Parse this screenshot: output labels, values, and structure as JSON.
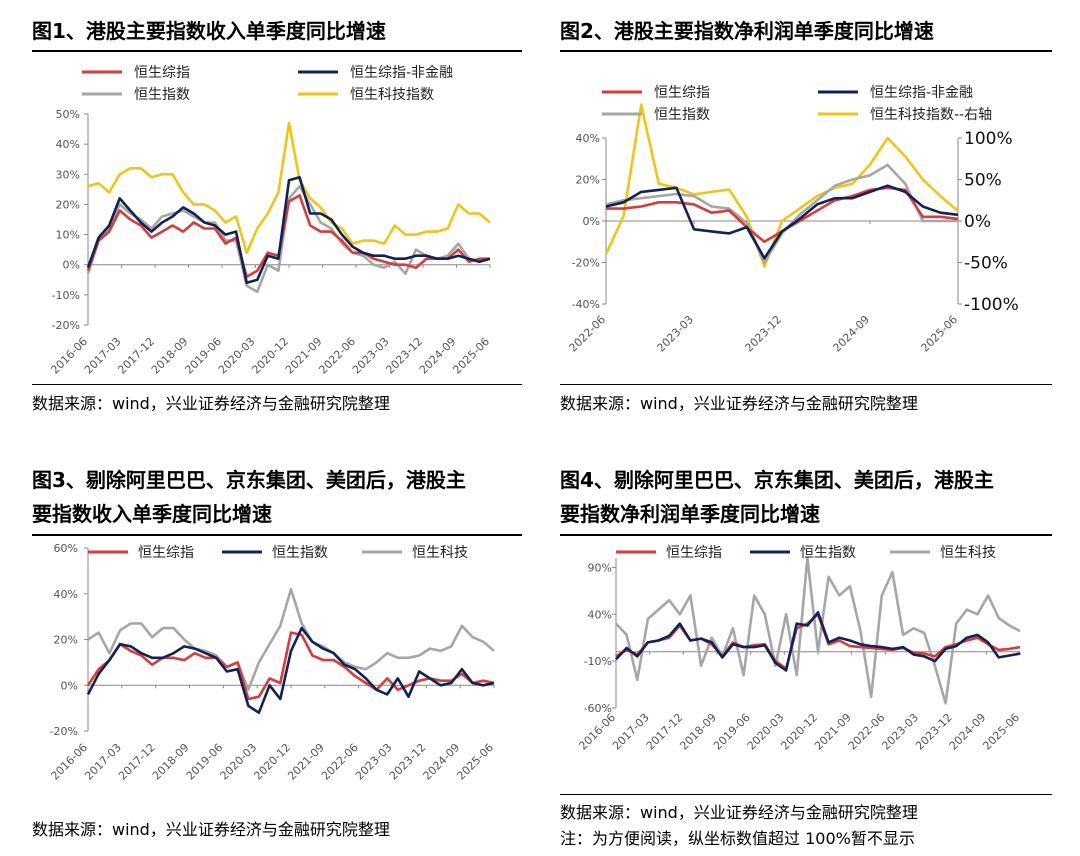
{
  "figures": [
    {
      "id": "fig1",
      "title_lines": [
        "图1、港股主要指数收入单季度同比增速"
      ],
      "source": "数据来源：wind，兴业证券经济与金融研究院整理",
      "note": "",
      "legend": [
        "恒生综指",
        "恒生综指-非金融",
        "恒生指数",
        "恒生科技指数"
      ]
    },
    {
      "id": "fig2",
      "title_lines": [
        "图2、港股主要指数净利润单季度同比增速"
      ],
      "source": "数据来源：wind，兴业证券经济与金融研究院整理",
      "note": "",
      "legend": [
        "恒生综指",
        "恒生综指-非金融",
        "恒生指数",
        "恒生科技指数--右轴"
      ]
    },
    {
      "id": "fig3",
      "title_lines": [
        "图3、剔除阿里巴巴、京东集团、美团后，港股主",
        "要指数收入单季度同比增速"
      ],
      "source": "数据来源：wind，兴业证券经济与金融研究院整理",
      "note": "",
      "legend": [
        "恒生综指",
        "恒生指数",
        "恒生科技"
      ]
    },
    {
      "id": "fig4",
      "title_lines": [
        "图4、剔除阿里巴巴、京东集团、美团后，港股主",
        "要指数净利润单季度同比增速"
      ],
      "source": "数据来源：wind，兴业证券经济与金融研究院整理",
      "note": "注：为方便阅读，纵坐标数值超过 100%暂不显示",
      "legend": [
        "恒生综指",
        "恒生指数",
        "恒生科技"
      ]
    }
  ],
  "colors": {
    "red": "#D93A3A",
    "navy": "#0E2357",
    "gray": "#A6A6A6",
    "yellow": "#F2C511"
  },
  "chart_data": [
    {
      "type": "line",
      "title": "图1、港股主要指数收入单季度同比增速",
      "ylim": [
        -20,
        50
      ],
      "yticks": [
        -20,
        -10,
        0,
        10,
        20,
        30,
        40,
        50
      ],
      "ysuffix": "%",
      "xtick_labels": [
        "2016-06",
        "2017-03",
        "2017-12",
        "2018-09",
        "2019-06",
        "2020-03",
        "2020-12",
        "2021-09",
        "2022-06",
        "2023-03",
        "2023-12",
        "2024-09",
        "2025-06"
      ],
      "series": [
        {
          "name": "恒生综指",
          "color_key": "red",
          "values": [
            -2,
            8,
            11,
            18,
            15,
            13,
            9,
            11,
            13,
            11,
            14,
            12,
            12,
            7,
            9,
            -4,
            -2,
            4,
            3,
            21,
            23,
            13,
            11,
            11,
            8,
            4,
            4,
            2,
            1,
            0,
            0,
            -1,
            2,
            2,
            2,
            5,
            1,
            2,
            2
          ]
        },
        {
          "name": "恒生综指-非金融",
          "color_key": "navy",
          "values": [
            -1,
            9,
            13,
            22,
            18,
            14,
            11,
            14,
            16,
            19,
            17,
            14,
            13,
            10,
            11,
            -6,
            -5,
            3,
            2,
            28,
            29,
            17,
            17,
            15,
            10,
            6,
            4,
            3,
            3,
            2,
            2,
            3,
            3,
            2,
            2,
            3,
            2,
            1,
            2
          ]
        },
        {
          "name": "恒生指数",
          "color_key": "gray",
          "values": [
            -3,
            8,
            12,
            20,
            17,
            15,
            12,
            16,
            17,
            18,
            16,
            14,
            14,
            8,
            8,
            -7,
            -9,
            0,
            -2,
            22,
            26,
            20,
            14,
            12,
            7,
            4,
            3,
            0,
            -1,
            1,
            -3,
            5,
            3,
            2,
            3,
            7,
            2,
            1,
            2
          ]
        },
        {
          "name": "恒生科技指数",
          "color_key": "yellow",
          "values": [
            26,
            27,
            24,
            30,
            32,
            32,
            29,
            30,
            30,
            24,
            20,
            20,
            18,
            14,
            16,
            4,
            12,
            17,
            24,
            47,
            28,
            22,
            19,
            14,
            12,
            7,
            8,
            8,
            7,
            13,
            10,
            10,
            11,
            11,
            12,
            20,
            17,
            17,
            14
          ]
        }
      ]
    },
    {
      "type": "line",
      "title": "图2、港股主要指数净利润单季度同比增速",
      "ylim": [
        -40,
        40
      ],
      "yticks": [
        -40,
        -20,
        0,
        20,
        40
      ],
      "ysuffix": "%",
      "y2lim": [
        -100,
        100
      ],
      "y2ticks": [
        100,
        50,
        0,
        -50,
        -100
      ],
      "y2labels": [
        "100%",
        "50%",
        "0%",
        "-50%",
        "-100%"
      ],
      "xtick_labels": [
        "2022-06",
        "2023-03",
        "2023-12",
        "2024-09",
        "2025-06"
      ],
      "series": [
        {
          "name": "恒生综指",
          "axis": "left",
          "color_key": "red",
          "values": [
            6,
            6,
            7,
            9,
            9,
            8,
            4,
            5,
            -3,
            -10,
            -5,
            0,
            5,
            10,
            12,
            15,
            16,
            15,
            2,
            2,
            1
          ]
        },
        {
          "name": "恒生综指-非金融",
          "axis": "left",
          "color_key": "navy",
          "values": [
            7,
            9,
            14,
            15,
            16,
            -4,
            -5,
            -6,
            -3,
            -18,
            -5,
            1,
            8,
            11,
            11,
            14,
            17,
            14,
            7,
            4,
            3
          ]
        },
        {
          "name": "恒生指数",
          "axis": "left",
          "color_key": "gray",
          "values": [
            8,
            10,
            11,
            12,
            13,
            12,
            7,
            6,
            -1,
            -20,
            -6,
            3,
            10,
            17,
            20,
            22,
            27,
            18,
            0,
            0,
            0
          ]
        },
        {
          "name": "恒生科技指数--右轴",
          "axis": "right",
          "color_key": "yellow",
          "values": [
            -40,
            6,
            140,
            45,
            40,
            32,
            35,
            38,
            5,
            -55,
            0,
            15,
            30,
            40,
            45,
            68,
            100,
            78,
            50,
            30,
            12
          ]
        }
      ]
    },
    {
      "type": "line",
      "title": "图3、剔除阿里巴巴、京东集团、美团后，港股主要指数收入单季度同比增速",
      "ylim": [
        -20,
        60
      ],
      "yticks": [
        -20,
        0,
        20,
        40,
        60
      ],
      "ysuffix": "%",
      "xtick_labels": [
        "2016-06",
        "2017-03",
        "2017-12",
        "2018-09",
        "2019-06",
        "2020-03",
        "2020-12",
        "2021-09",
        "2022-06",
        "2023-03",
        "2023-12",
        "2024-09",
        "2025-06"
      ],
      "series": [
        {
          "name": "恒生综指",
          "color_key": "red",
          "values": [
            0,
            7,
            11,
            18,
            15,
            13,
            9,
            12,
            12,
            11,
            14,
            12,
            12,
            8,
            10,
            -6,
            -5,
            3,
            1,
            23,
            22,
            13,
            11,
            11,
            8,
            4,
            1,
            -2,
            3,
            -2,
            0,
            2,
            3,
            2,
            2,
            5,
            1,
            2,
            1
          ]
        },
        {
          "name": "恒生指数",
          "color_key": "navy",
          "values": [
            -4,
            5,
            11,
            18,
            17,
            14,
            12,
            12,
            14,
            17,
            16,
            14,
            12,
            6,
            7,
            -9,
            -12,
            0,
            -6,
            15,
            25,
            19,
            16,
            14,
            9,
            7,
            3,
            -2,
            -4,
            3,
            -5,
            6,
            3,
            0,
            1,
            7,
            1,
            0,
            1
          ]
        },
        {
          "name": "恒生科技",
          "color_key": "gray",
          "values": [
            20,
            23,
            14,
            24,
            27,
            27,
            21,
            25,
            25,
            20,
            16,
            15,
            13,
            8,
            10,
            -2,
            10,
            18,
            26,
            42,
            27,
            19,
            17,
            14,
            10,
            8,
            7,
            10,
            14,
            12,
            12,
            13,
            16,
            15,
            17,
            26,
            21,
            19,
            15
          ]
        }
      ]
    },
    {
      "type": "line",
      "title": "图4、剔除阿里巴巴、京东集团、美团后，港股主要指数净利润单季度同比增速",
      "ylim": [
        -60,
        100
      ],
      "yticks": [
        -60,
        -10,
        40,
        90
      ],
      "ysuffix": "%",
      "xtick_labels": [
        "2016-06",
        "2017-03",
        "2017-12",
        "2018-09",
        "2019-06",
        "2020-03",
        "2020-12",
        "2021-09",
        "2022-06",
        "2023-03",
        "2023-12",
        "2024-09",
        "2025-06"
      ],
      "series": [
        {
          "name": "恒生综指",
          "color_key": "red",
          "values": [
            -5,
            2,
            -3,
            10,
            12,
            15,
            28,
            12,
            14,
            8,
            -5,
            10,
            5,
            7,
            8,
            -10,
            -18,
            25,
            30,
            40,
            8,
            12,
            6,
            5,
            4,
            3,
            2,
            4,
            -1,
            -2,
            -5,
            5,
            8,
            12,
            15,
            8,
            2,
            3,
            5
          ]
        },
        {
          "name": "恒生指数",
          "color_key": "navy",
          "values": [
            -8,
            4,
            -5,
            10,
            12,
            17,
            30,
            12,
            14,
            10,
            -6,
            8,
            5,
            5,
            7,
            -12,
            -20,
            30,
            28,
            42,
            10,
            15,
            12,
            8,
            6,
            5,
            3,
            5,
            -3,
            -5,
            -10,
            3,
            6,
            15,
            18,
            10,
            -6,
            -4,
            -2
          ]
        },
        {
          "name": "恒生科技",
          "color_key": "gray",
          "values": [
            30,
            18,
            -30,
            35,
            45,
            55,
            40,
            60,
            -15,
            15,
            -5,
            25,
            -25,
            60,
            40,
            -15,
            40,
            -25,
            100,
            0,
            80,
            60,
            70,
            22,
            -48,
            60,
            85,
            18,
            25,
            20,
            -15,
            -55,
            30,
            45,
            40,
            60,
            36,
            28,
            22
          ]
        }
      ]
    }
  ]
}
